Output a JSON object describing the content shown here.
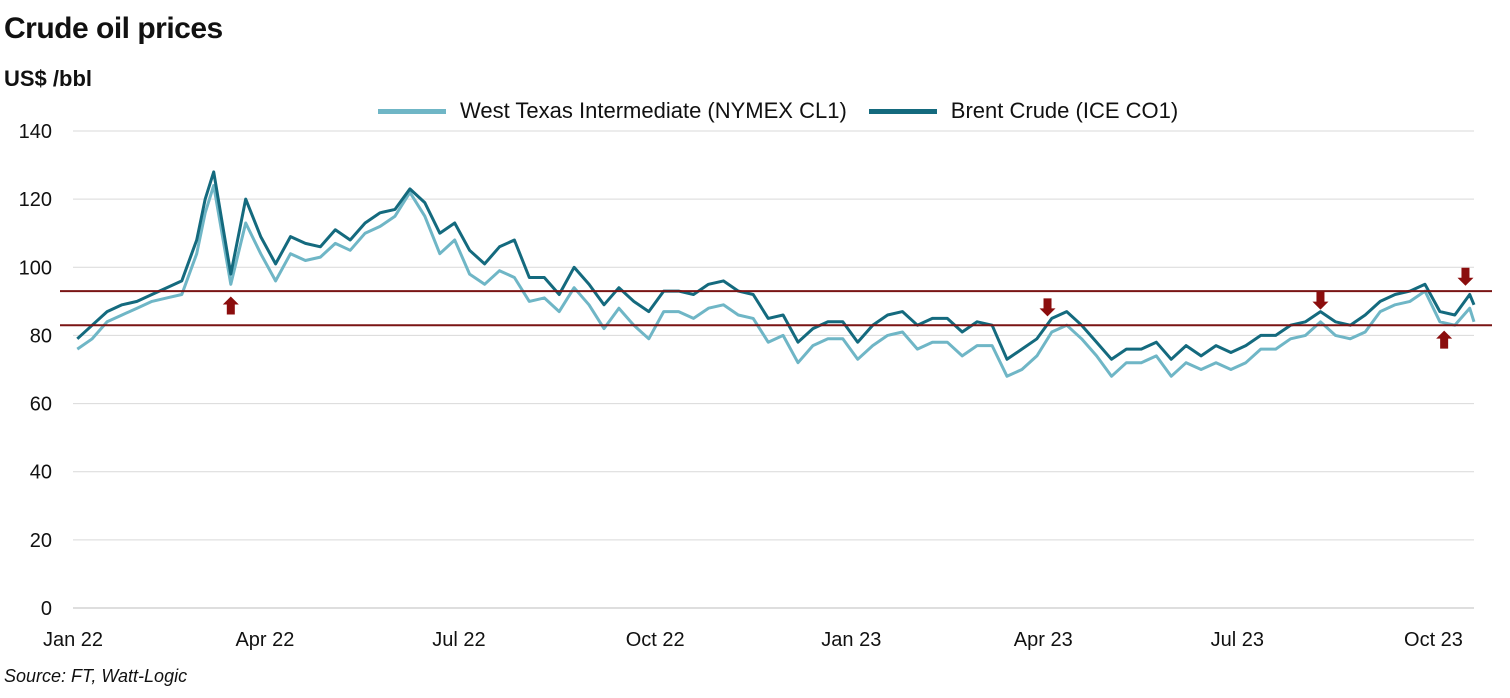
{
  "title": "Crude oil prices",
  "unit": "US$ /bbl",
  "source": "Source: FT, Watt-Logic",
  "colors": {
    "wti": "#6fb6c6",
    "brent": "#146a7e",
    "ref_line": "#7a1414",
    "arrow": "#8b0d0d",
    "grid": "#d9d9d9"
  },
  "chart_data": {
    "type": "line",
    "ylim": [
      0,
      140
    ],
    "yticks": [
      0,
      20,
      40,
      60,
      80,
      100,
      120,
      140
    ],
    "xlim": [
      "2022-01-01",
      "2023-10-20"
    ],
    "xticks": [
      {
        "date": "2022-01-01",
        "label": "Jan 22"
      },
      {
        "date": "2022-04-01",
        "label": "Apr 22"
      },
      {
        "date": "2022-07-01",
        "label": "Jul 22"
      },
      {
        "date": "2022-10-01",
        "label": "Oct 22"
      },
      {
        "date": "2023-01-01",
        "label": "Jan 23"
      },
      {
        "date": "2023-04-01",
        "label": "Apr 23"
      },
      {
        "date": "2023-07-01",
        "label": "Jul 23"
      },
      {
        "date": "2023-10-01",
        "label": "Oct 23"
      }
    ],
    "reference_lines": [
      93,
      83
    ],
    "arrows": [
      {
        "date": "2022-03-16",
        "value": 92,
        "direction": "up"
      },
      {
        "date": "2023-04-03",
        "value": 85,
        "direction": "down"
      },
      {
        "date": "2023-08-09",
        "value": 87,
        "direction": "down"
      },
      {
        "date": "2023-10-06",
        "value": 82,
        "direction": "up"
      },
      {
        "date": "2023-10-16",
        "value": 94,
        "direction": "down"
      }
    ],
    "series": [
      {
        "name": "West Texas Intermediate (NYMEX CL1)",
        "points": [
          [
            "2022-01-03",
            76
          ],
          [
            "2022-01-10",
            79
          ],
          [
            "2022-01-17",
            84
          ],
          [
            "2022-01-24",
            86
          ],
          [
            "2022-01-31",
            88
          ],
          [
            "2022-02-07",
            90
          ],
          [
            "2022-02-14",
            91
          ],
          [
            "2022-02-21",
            92
          ],
          [
            "2022-02-28",
            104
          ],
          [
            "2022-03-04",
            116
          ],
          [
            "2022-03-08",
            124
          ],
          [
            "2022-03-16",
            95
          ],
          [
            "2022-03-23",
            113
          ],
          [
            "2022-03-30",
            104
          ],
          [
            "2022-04-06",
            96
          ],
          [
            "2022-04-13",
            104
          ],
          [
            "2022-04-20",
            102
          ],
          [
            "2022-04-27",
            103
          ],
          [
            "2022-05-04",
            107
          ],
          [
            "2022-05-11",
            105
          ],
          [
            "2022-05-18",
            110
          ],
          [
            "2022-05-25",
            112
          ],
          [
            "2022-06-01",
            115
          ],
          [
            "2022-06-08",
            122
          ],
          [
            "2022-06-15",
            115
          ],
          [
            "2022-06-22",
            104
          ],
          [
            "2022-06-29",
            108
          ],
          [
            "2022-07-06",
            98
          ],
          [
            "2022-07-13",
            95
          ],
          [
            "2022-07-20",
            99
          ],
          [
            "2022-07-27",
            97
          ],
          [
            "2022-08-03",
            90
          ],
          [
            "2022-08-10",
            91
          ],
          [
            "2022-08-17",
            87
          ],
          [
            "2022-08-24",
            94
          ],
          [
            "2022-08-31",
            89
          ],
          [
            "2022-09-07",
            82
          ],
          [
            "2022-09-14",
            88
          ],
          [
            "2022-09-21",
            83
          ],
          [
            "2022-09-28",
            79
          ],
          [
            "2022-10-05",
            87
          ],
          [
            "2022-10-12",
            87
          ],
          [
            "2022-10-19",
            85
          ],
          [
            "2022-10-26",
            88
          ],
          [
            "2022-11-02",
            89
          ],
          [
            "2022-11-09",
            86
          ],
          [
            "2022-11-16",
            85
          ],
          [
            "2022-11-23",
            78
          ],
          [
            "2022-11-30",
            80
          ],
          [
            "2022-12-07",
            72
          ],
          [
            "2022-12-14",
            77
          ],
          [
            "2022-12-21",
            79
          ],
          [
            "2022-12-28",
            79
          ],
          [
            "2023-01-04",
            73
          ],
          [
            "2023-01-11",
            77
          ],
          [
            "2023-01-18",
            80
          ],
          [
            "2023-01-25",
            81
          ],
          [
            "2023-02-01",
            76
          ],
          [
            "2023-02-08",
            78
          ],
          [
            "2023-02-15",
            78
          ],
          [
            "2023-02-22",
            74
          ],
          [
            "2023-03-01",
            77
          ],
          [
            "2023-03-08",
            77
          ],
          [
            "2023-03-15",
            68
          ],
          [
            "2023-03-22",
            70
          ],
          [
            "2023-03-29",
            74
          ],
          [
            "2023-04-05",
            81
          ],
          [
            "2023-04-12",
            83
          ],
          [
            "2023-04-19",
            79
          ],
          [
            "2023-04-26",
            74
          ],
          [
            "2023-05-03",
            68
          ],
          [
            "2023-05-10",
            72
          ],
          [
            "2023-05-17",
            72
          ],
          [
            "2023-05-24",
            74
          ],
          [
            "2023-05-31",
            68
          ],
          [
            "2023-06-07",
            72
          ],
          [
            "2023-06-14",
            70
          ],
          [
            "2023-06-21",
            72
          ],
          [
            "2023-06-28",
            70
          ],
          [
            "2023-07-05",
            72
          ],
          [
            "2023-07-12",
            76
          ],
          [
            "2023-07-19",
            76
          ],
          [
            "2023-07-26",
            79
          ],
          [
            "2023-08-02",
            80
          ],
          [
            "2023-08-09",
            84
          ],
          [
            "2023-08-16",
            80
          ],
          [
            "2023-08-23",
            79
          ],
          [
            "2023-08-30",
            81
          ],
          [
            "2023-09-06",
            87
          ],
          [
            "2023-09-13",
            89
          ],
          [
            "2023-09-20",
            90
          ],
          [
            "2023-09-27",
            93
          ],
          [
            "2023-10-04",
            84
          ],
          [
            "2023-10-11",
            83
          ],
          [
            "2023-10-18",
            88
          ],
          [
            "2023-10-20",
            84
          ]
        ]
      },
      {
        "name": "Brent Crude (ICE CO1)",
        "points": [
          [
            "2022-01-03",
            79
          ],
          [
            "2022-01-10",
            83
          ],
          [
            "2022-01-17",
            87
          ],
          [
            "2022-01-24",
            89
          ],
          [
            "2022-01-31",
            90
          ],
          [
            "2022-02-07",
            92
          ],
          [
            "2022-02-14",
            94
          ],
          [
            "2022-02-21",
            96
          ],
          [
            "2022-02-28",
            108
          ],
          [
            "2022-03-04",
            120
          ],
          [
            "2022-03-08",
            128
          ],
          [
            "2022-03-16",
            98
          ],
          [
            "2022-03-23",
            120
          ],
          [
            "2022-03-30",
            109
          ],
          [
            "2022-04-06",
            101
          ],
          [
            "2022-04-13",
            109
          ],
          [
            "2022-04-20",
            107
          ],
          [
            "2022-04-27",
            106
          ],
          [
            "2022-05-04",
            111
          ],
          [
            "2022-05-11",
            108
          ],
          [
            "2022-05-18",
            113
          ],
          [
            "2022-05-25",
            116
          ],
          [
            "2022-06-01",
            117
          ],
          [
            "2022-06-08",
            123
          ],
          [
            "2022-06-15",
            119
          ],
          [
            "2022-06-22",
            110
          ],
          [
            "2022-06-29",
            113
          ],
          [
            "2022-07-06",
            105
          ],
          [
            "2022-07-13",
            101
          ],
          [
            "2022-07-20",
            106
          ],
          [
            "2022-07-27",
            108
          ],
          [
            "2022-08-03",
            97
          ],
          [
            "2022-08-10",
            97
          ],
          [
            "2022-08-17",
            92
          ],
          [
            "2022-08-24",
            100
          ],
          [
            "2022-08-31",
            95
          ],
          [
            "2022-09-07",
            89
          ],
          [
            "2022-09-14",
            94
          ],
          [
            "2022-09-21",
            90
          ],
          [
            "2022-09-28",
            87
          ],
          [
            "2022-10-05",
            93
          ],
          [
            "2022-10-12",
            93
          ],
          [
            "2022-10-19",
            92
          ],
          [
            "2022-10-26",
            95
          ],
          [
            "2022-11-02",
            96
          ],
          [
            "2022-11-09",
            93
          ],
          [
            "2022-11-16",
            92
          ],
          [
            "2022-11-23",
            85
          ],
          [
            "2022-11-30",
            86
          ],
          [
            "2022-12-07",
            78
          ],
          [
            "2022-12-14",
            82
          ],
          [
            "2022-12-21",
            84
          ],
          [
            "2022-12-28",
            84
          ],
          [
            "2023-01-04",
            78
          ],
          [
            "2023-01-11",
            83
          ],
          [
            "2023-01-18",
            86
          ],
          [
            "2023-01-25",
            87
          ],
          [
            "2023-02-01",
            83
          ],
          [
            "2023-02-08",
            85
          ],
          [
            "2023-02-15",
            85
          ],
          [
            "2023-02-22",
            81
          ],
          [
            "2023-03-01",
            84
          ],
          [
            "2023-03-08",
            83
          ],
          [
            "2023-03-15",
            73
          ],
          [
            "2023-03-22",
            76
          ],
          [
            "2023-03-29",
            79
          ],
          [
            "2023-04-05",
            85
          ],
          [
            "2023-04-12",
            87
          ],
          [
            "2023-04-19",
            83
          ],
          [
            "2023-04-26",
            78
          ],
          [
            "2023-05-03",
            73
          ],
          [
            "2023-05-10",
            76
          ],
          [
            "2023-05-17",
            76
          ],
          [
            "2023-05-24",
            78
          ],
          [
            "2023-05-31",
            73
          ],
          [
            "2023-06-07",
            77
          ],
          [
            "2023-06-14",
            74
          ],
          [
            "2023-06-21",
            77
          ],
          [
            "2023-06-28",
            75
          ],
          [
            "2023-07-05",
            77
          ],
          [
            "2023-07-12",
            80
          ],
          [
            "2023-07-19",
            80
          ],
          [
            "2023-07-26",
            83
          ],
          [
            "2023-08-02",
            84
          ],
          [
            "2023-08-09",
            87
          ],
          [
            "2023-08-16",
            84
          ],
          [
            "2023-08-23",
            83
          ],
          [
            "2023-08-30",
            86
          ],
          [
            "2023-09-06",
            90
          ],
          [
            "2023-09-13",
            92
          ],
          [
            "2023-09-20",
            93
          ],
          [
            "2023-09-27",
            95
          ],
          [
            "2023-10-04",
            87
          ],
          [
            "2023-10-11",
            86
          ],
          [
            "2023-10-18",
            92
          ],
          [
            "2023-10-20",
            89
          ]
        ]
      }
    ]
  }
}
